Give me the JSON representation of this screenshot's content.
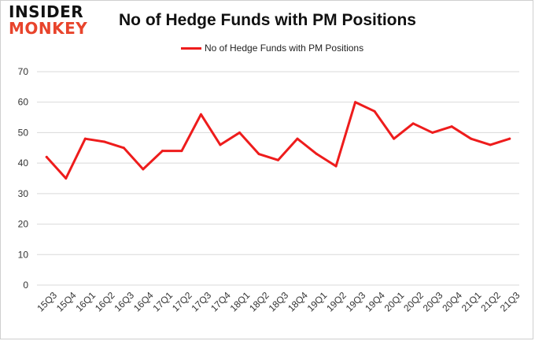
{
  "logo": {
    "line1": "INSIDER",
    "line2": "MONKEY"
  },
  "colors": {
    "series": "#ee1c1c",
    "grid": "#d9d9d9",
    "axis_text": "#333333",
    "logo_accent": "#e8442c"
  },
  "chart_data": {
    "type": "line",
    "title": "No of Hedge Funds with PM Positions",
    "xlabel": "",
    "ylabel": "",
    "ylim": [
      0,
      70
    ],
    "yticks": [
      0,
      10,
      20,
      30,
      40,
      50,
      60,
      70
    ],
    "grid": true,
    "legend_position": "top-center",
    "categories": [
      "15Q3",
      "15Q4",
      "16Q1",
      "16Q2",
      "16Q3",
      "16Q4",
      "17Q1",
      "17Q2",
      "17Q3",
      "17Q4",
      "18Q1",
      "18Q2",
      "18Q3",
      "18Q4",
      "19Q1",
      "19Q2",
      "19Q3",
      "19Q4",
      "20Q1",
      "20Q2",
      "20Q3",
      "20Q4",
      "21Q1",
      "21Q2",
      "21Q3"
    ],
    "series": [
      {
        "name": "No of Hedge Funds with PM Positions",
        "values": [
          42,
          35,
          48,
          47,
          45,
          38,
          44,
          44,
          56,
          46,
          50,
          43,
          41,
          48,
          43,
          39,
          60,
          57,
          48,
          53,
          50,
          52,
          48,
          46,
          48
        ]
      }
    ]
  }
}
